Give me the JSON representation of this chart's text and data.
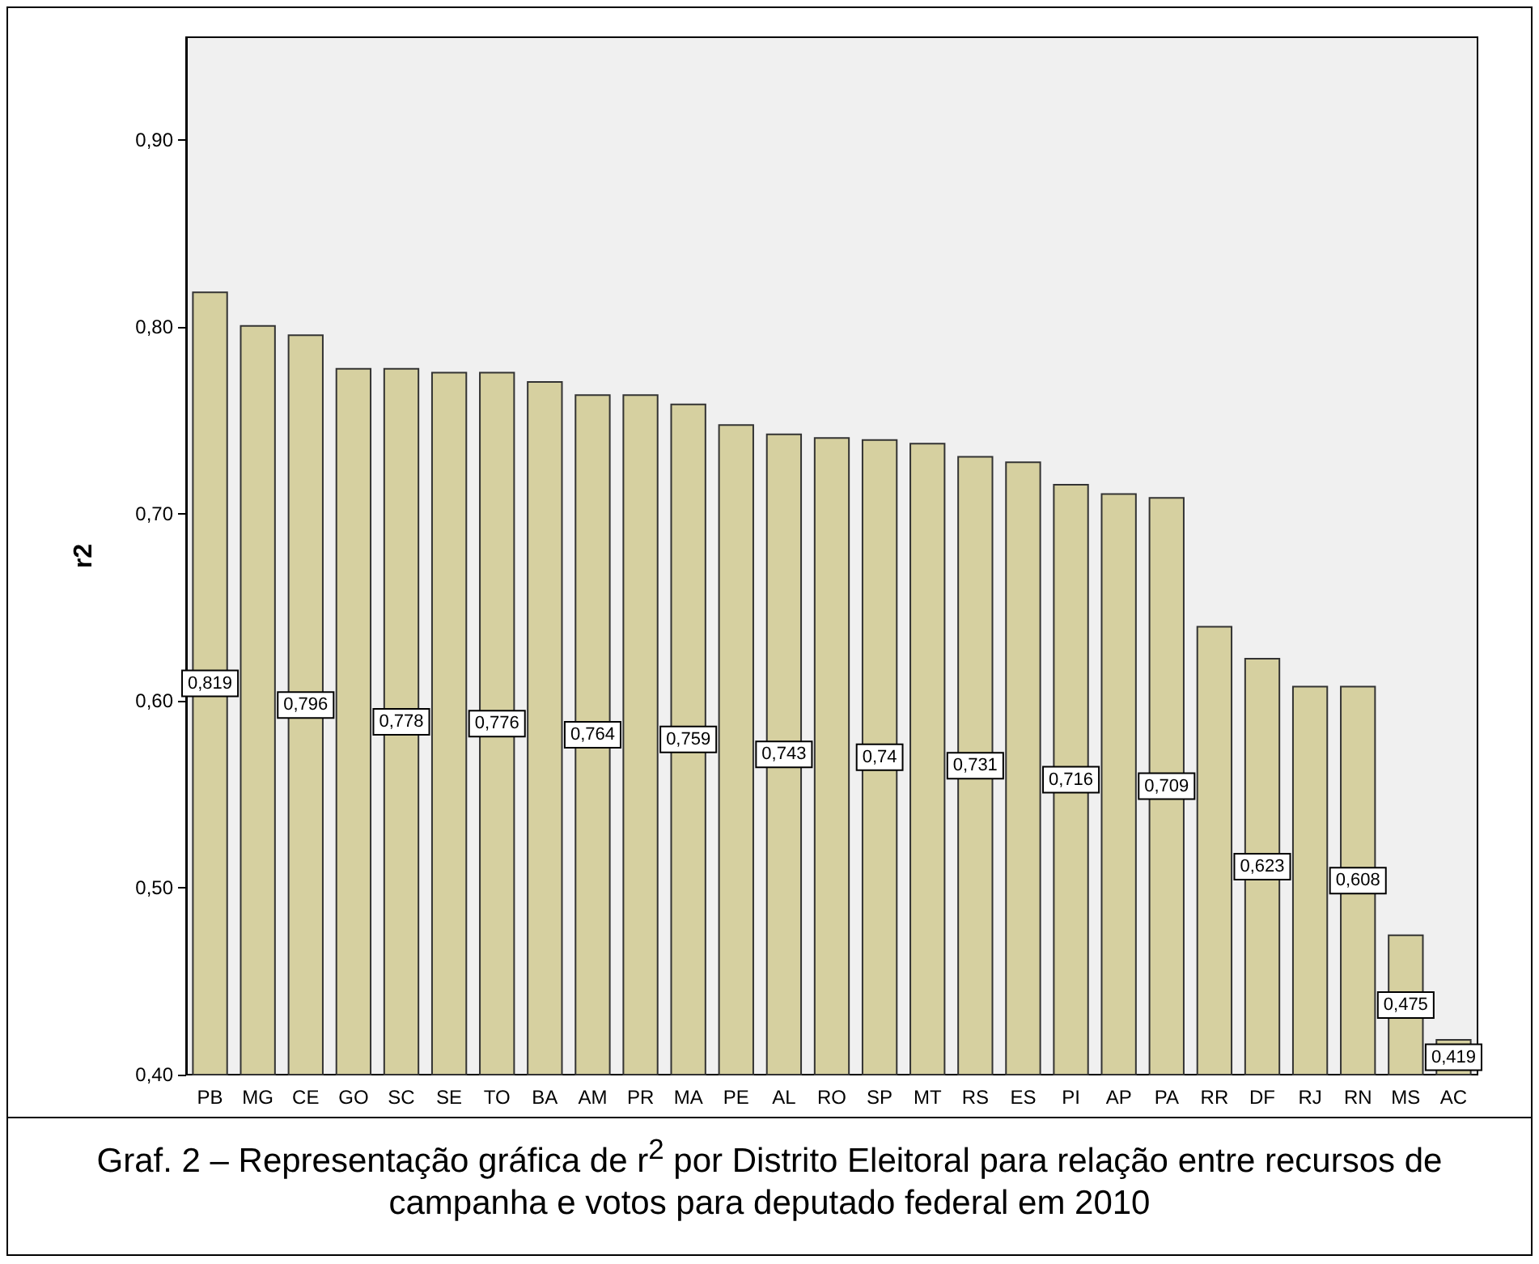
{
  "chart_data": {
    "type": "bar",
    "title": "Graf. 2 – Representação gráfica de r$^{2}$ por Distrito Eleitoral para relação entre recursos de campanha e votos para deputado federal em 2010",
    "ylabel": "r2",
    "categories": [
      "PB",
      "MG",
      "CE",
      "GO",
      "SC",
      "SE",
      "TO",
      "BA",
      "AM",
      "PR",
      "MA",
      "PE",
      "AL",
      "RO",
      "SP",
      "MT",
      "RS",
      "ES",
      "PI",
      "AP",
      "PA",
      "RR",
      "DF",
      "RJ",
      "RN",
      "MS",
      "AC"
    ],
    "values": [
      0.819,
      0.801,
      0.796,
      0.778,
      0.778,
      0.776,
      0.776,
      0.771,
      0.764,
      0.764,
      0.759,
      0.748,
      0.743,
      0.741,
      0.74,
      0.738,
      0.731,
      0.728,
      0.716,
      0.711,
      0.709,
      0.64,
      0.623,
      0.608,
      0.608,
      0.475,
      0.419
    ],
    "value_labels": [
      "0,819",
      null,
      "0,796",
      null,
      "0,778",
      null,
      "0,776",
      null,
      "0,764",
      null,
      "0,759",
      null,
      "0,743",
      null,
      "0,74",
      null,
      "0,731",
      null,
      "0,716",
      null,
      "0,709",
      null,
      "0,623",
      null,
      "0,608",
      "0,475",
      "0,419"
    ],
    "color": "#d6d0a0",
    "ylim": [
      0.4,
      0.955
    ],
    "yticks": [
      {
        "value": 0.4,
        "label": "0,40"
      },
      {
        "value": 0.5,
        "label": "0,50"
      },
      {
        "value": 0.6,
        "label": "0,60"
      },
      {
        "value": 0.7,
        "label": "0,70"
      },
      {
        "value": 0.8,
        "label": "0,80"
      },
      {
        "value": 0.9,
        "label": "0,90"
      }
    ],
    "grid": false
  }
}
